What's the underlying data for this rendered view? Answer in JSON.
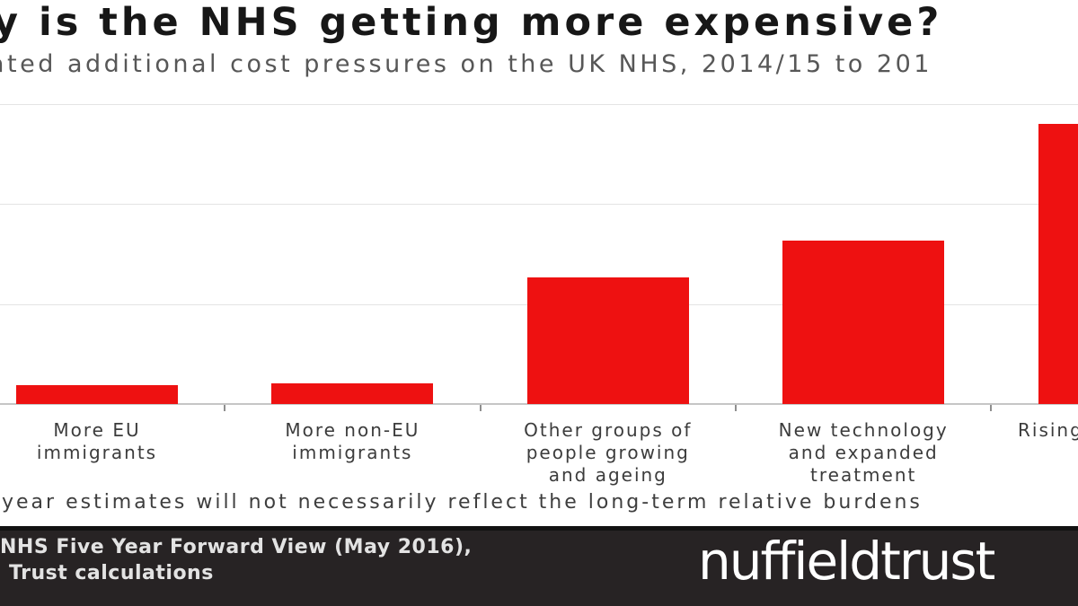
{
  "header": {
    "title": "y is the NHS getting more expensive?",
    "subtitle": "ated additional cost pressures on the UK NHS, 2014/15 to 201"
  },
  "chart_data": {
    "type": "bar",
    "title": "y is the NHS getting more expensive?",
    "subtitle": "ated additional cost pressures on the UK NHS, 2014/15 to 201",
    "categories": [
      "More EU immigrants",
      "More non-EU immigrants",
      "Other groups of people growing and ageing",
      "New technology and expanded treatment",
      "Rising"
    ],
    "categories_lines": [
      [
        "More EU",
        "immigrants"
      ],
      [
        "More non-EU",
        "immigrants"
      ],
      [
        "Other groups of",
        "people growing",
        "and ageing"
      ],
      [
        "New technology",
        "and expanded",
        "treatment"
      ],
      [
        "Rising"
      ]
    ],
    "values": [
      0.19,
      0.21,
      1.27,
      1.63,
      2.8
    ],
    "xlabel": "",
    "ylabel": "",
    "ylim": [
      0,
      3.15
    ],
    "gridlines": [
      1,
      2,
      3
    ],
    "grid": "horizontal, unlabeled (y-axis tick labels cropped off left edge)",
    "legend": "none",
    "bar_color": "#ee1111",
    "units_note": "values estimated in gridline units; screenshot is cropped on left and right edges"
  },
  "footnote": "year estimates will not necessarily reflect the long-term relative burdens",
  "footer": {
    "source_line1": "NHS Five Year Forward View (May 2016),",
    "source_line2": "Trust calculations",
    "logo_text": "nuffieldtrust"
  }
}
